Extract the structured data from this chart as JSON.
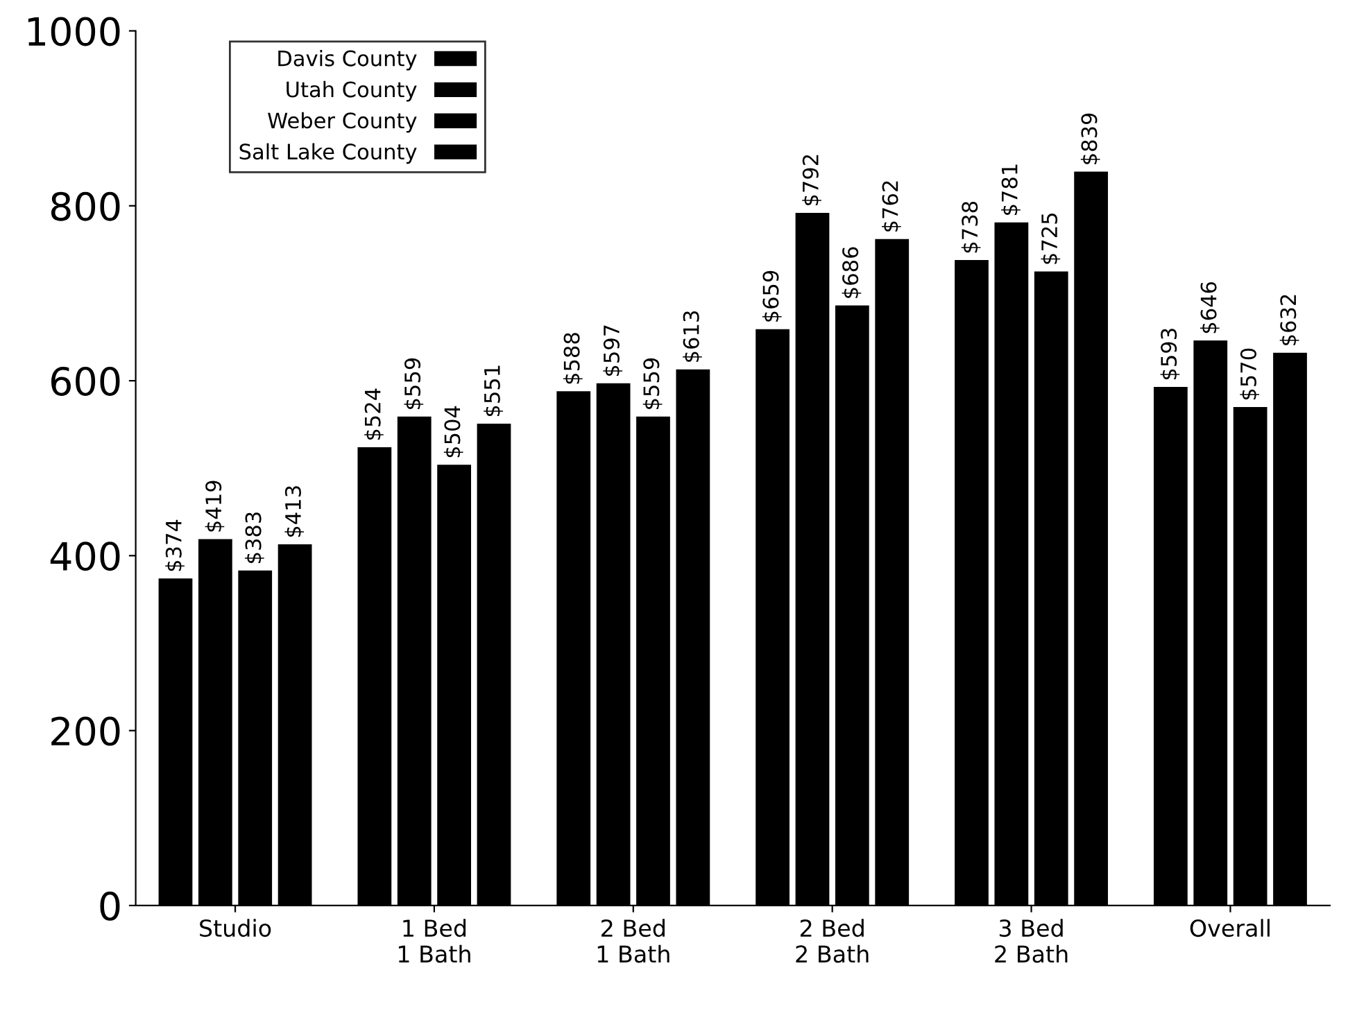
{
  "chart_data": {
    "type": "bar",
    "categories": [
      "Studio",
      "1 Bed\n1 Bath",
      "2 Bed\n1 Bath",
      "2 Bed\n2 Bath",
      "3 Bed\n2 Bath",
      "Overall"
    ],
    "series": [
      {
        "name": "Davis County",
        "color": "#000000",
        "values": [
          374,
          524,
          588,
          659,
          738,
          593
        ],
        "value_labels": [
          "$374",
          "$524",
          "$588",
          "$659",
          "$738",
          "$593"
        ]
      },
      {
        "name": "Utah County",
        "color": "#000000",
        "values": [
          419,
          559,
          597,
          792,
          781,
          646
        ],
        "value_labels": [
          "$419",
          "$559",
          "$597",
          "$792",
          "$781",
          "$646"
        ]
      },
      {
        "name": "Weber County",
        "color": "#000000",
        "values": [
          383,
          504,
          559,
          686,
          725,
          570
        ],
        "value_labels": [
          "$383",
          "$504",
          "$559",
          "$686",
          "$725",
          "$570"
        ]
      },
      {
        "name": "Salt Lake County",
        "color": "#000000",
        "values": [
          413,
          551,
          613,
          762,
          839,
          632
        ],
        "value_labels": [
          "$413",
          "$551",
          "$613",
          "$762",
          "$839",
          "$632"
        ]
      }
    ],
    "ylim": [
      0,
      1000
    ],
    "yticks": [
      0,
      200,
      400,
      600,
      800,
      1000
    ],
    "grid": false,
    "legend": "top left"
  }
}
